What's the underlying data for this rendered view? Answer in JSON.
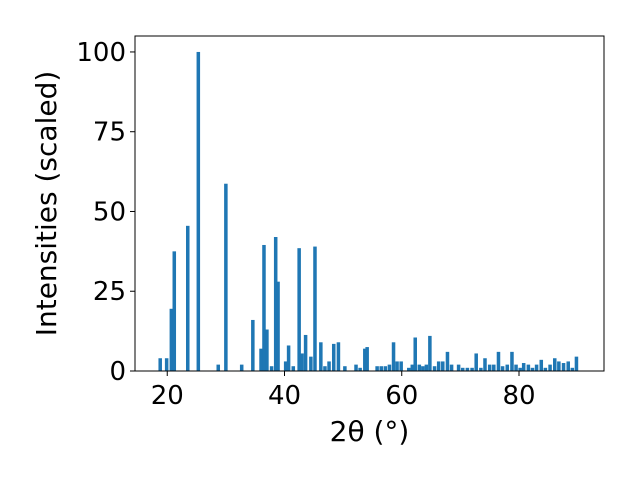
{
  "chart_data": {
    "type": "bar",
    "xlabel": "2θ (°)",
    "ylabel": "Intensities (scaled)",
    "xlim": [
      14.5,
      94.5
    ],
    "ylim": [
      0,
      105
    ],
    "xticks": [
      20,
      40,
      60,
      80
    ],
    "yticks": [
      0,
      25,
      50,
      75,
      100
    ],
    "grid": false,
    "bar_color": "#1f77b4",
    "bar_width_deg": 0.6,
    "x": [
      18.8,
      19.9,
      20.7,
      21.2,
      23.5,
      25.3,
      28.7,
      30.0,
      32.7,
      34.6,
      36.0,
      36.5,
      37.0,
      37.8,
      38.5,
      38.9,
      40.2,
      40.7,
      41.5,
      42.5,
      43.0,
      43.6,
      44.5,
      45.2,
      46.2,
      46.9,
      47.6,
      48.4,
      49.2,
      50.3,
      52.2,
      52.9,
      53.7,
      54.1,
      55.8,
      56.5,
      57.2,
      57.9,
      58.6,
      59.2,
      59.9,
      61.2,
      61.8,
      62.3,
      63.0,
      63.6,
      64.2,
      64.8,
      65.6,
      66.3,
      67.0,
      67.8,
      68.5,
      69.7,
      70.4,
      71.2,
      72.0,
      72.7,
      73.5,
      74.2,
      75.0,
      75.7,
      76.5,
      77.2,
      78.0,
      78.8,
      79.5,
      80.2,
      80.8,
      81.6,
      82.3,
      83.0,
      83.8,
      84.5,
      85.3,
      86.1,
      86.8,
      87.6,
      88.4,
      89.1,
      89.8
    ],
    "values": [
      4,
      4,
      19.5,
      37.5,
      45.5,
      100,
      2,
      58.7,
      2,
      16,
      7,
      39.5,
      13,
      1.5,
      42,
      28,
      3,
      8,
      1.5,
      38.5,
      5.5,
      11.3,
      4.5,
      39,
      9,
      1.5,
      3,
      8.5,
      9,
      1.5,
      2,
      1,
      7,
      7.5,
      1.5,
      1.5,
      1.5,
      2,
      9,
      3,
      3,
      1,
      2,
      10.5,
      2,
      1.5,
      2,
      11,
      1.5,
      3,
      3,
      6,
      2,
      2,
      1,
      1,
      1,
      5.5,
      1,
      4,
      2,
      2,
      6,
      1.5,
      2,
      6,
      2,
      1,
      2.5,
      2,
      1,
      2,
      3.5,
      1,
      2,
      4,
      3,
      2.5,
      3,
      1,
      4.5
    ]
  }
}
